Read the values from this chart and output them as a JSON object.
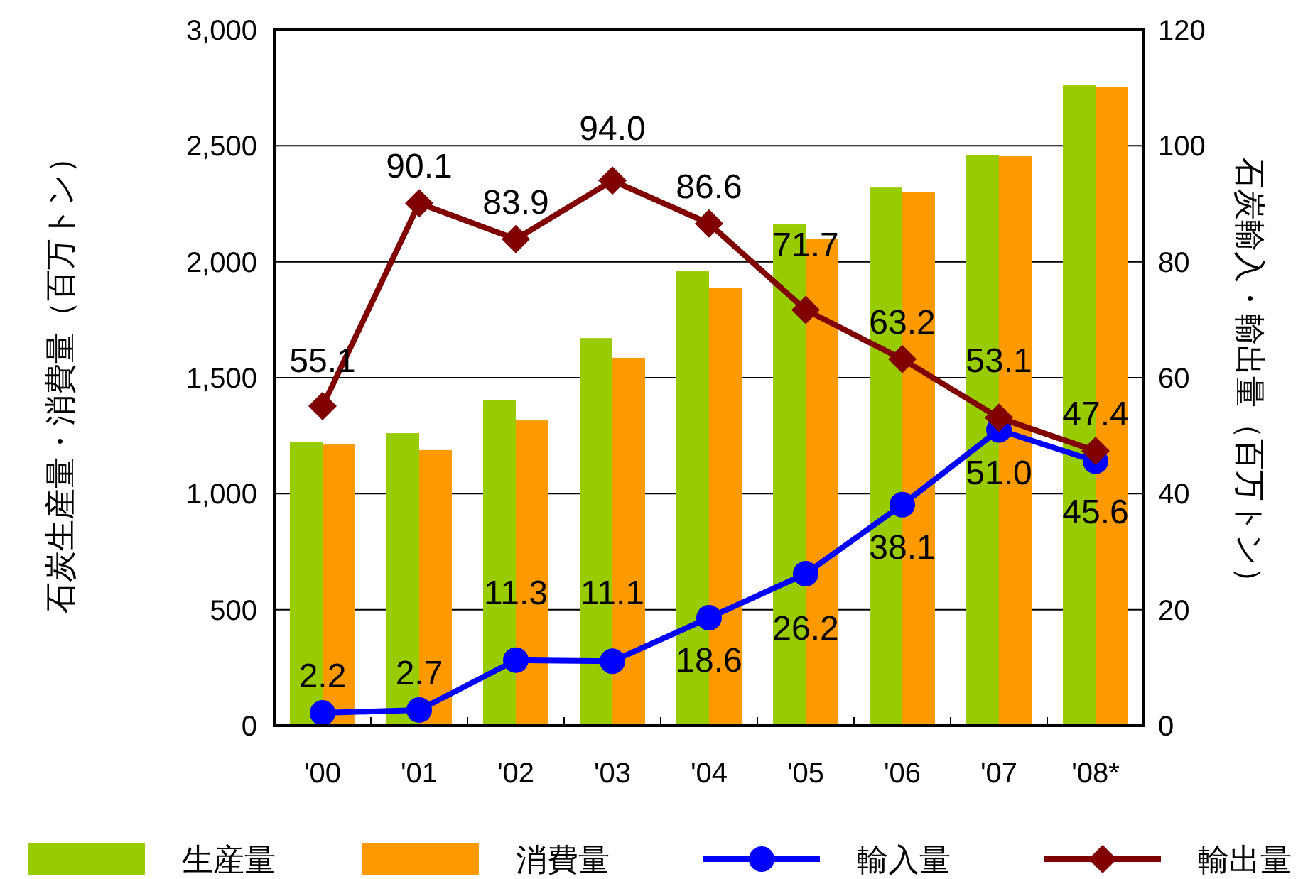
{
  "chart_data": {
    "type": "bar",
    "ylabel": "石炭生産量・消費量（百万トン）",
    "y2label": "石炭輸入・輸出量（百万トン）",
    "categories": [
      "'00",
      "'01",
      "'02",
      "'03",
      "'04",
      "'05",
      "'06",
      "'07",
      "'08*"
    ],
    "series": [
      {
        "name": "生産量",
        "color": "#99cc00",
        "values": [
          1224,
          1261,
          1402,
          1671,
          1959,
          2161,
          2320,
          2461,
          2761
        ]
      },
      {
        "name": "消費量",
        "color": "#ff9900",
        "values": [
          1212,
          1188,
          1316,
          1586,
          1886,
          2100,
          2302,
          2455,
          2755
        ]
      },
      {
        "name": "輸入量",
        "type": "line",
        "axis": "y2",
        "marker": "circle",
        "color": "#0000ff",
        "values": [
          2.2,
          2.7,
          11.3,
          11.1,
          18.6,
          26.2,
          38.1,
          51.0,
          45.6
        ],
        "value_labels": [
          "2.2",
          "2.7",
          "11.3",
          "11.1",
          "18.6",
          "26.2",
          "38.1",
          "51.0",
          "45.6"
        ]
      },
      {
        "name": "輸出量",
        "type": "line",
        "axis": "y2",
        "marker": "diamond",
        "color": "#800000",
        "values": [
          55.1,
          90.1,
          83.9,
          94.0,
          86.6,
          71.7,
          63.2,
          53.1,
          47.4
        ],
        "value_labels": [
          "55.1",
          "90.1",
          "83.9",
          "94.0",
          "86.6",
          "71.7",
          "63.2",
          "53.1",
          "47.4"
        ]
      }
    ],
    "ylim": [
      0,
      3000
    ],
    "yticks": [
      {
        "value": 0,
        "label": "0"
      },
      {
        "value": 500,
        "label": "500"
      },
      {
        "value": 1000,
        "label": "1,000"
      },
      {
        "value": 1500,
        "label": "1,500"
      },
      {
        "value": 2000,
        "label": "2,000"
      },
      {
        "value": 2500,
        "label": "2,500"
      },
      {
        "value": 3000,
        "label": "3,000"
      }
    ],
    "y2lim": [
      0,
      120
    ],
    "y2ticks": [
      0,
      20,
      40,
      60,
      80,
      100,
      120
    ],
    "grid": "y",
    "legend": "bottom",
    "line_style": "solid"
  }
}
